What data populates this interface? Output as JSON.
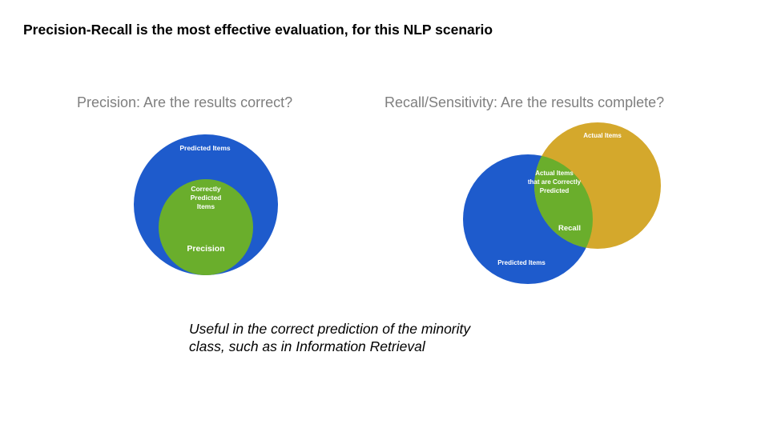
{
  "title": "Precision-Recall is the most effective evaluation, for this NLP scenario",
  "precision_panel": {
    "heading": "Precision: Are the results correct?",
    "outer_label": "Predicted Items",
    "inner_label_lines": [
      "Correctly",
      "Predicted",
      "Items"
    ],
    "metric_label": "Precision"
  },
  "recall_panel": {
    "heading": "Recall/Sensitivity: Are the results complete?",
    "actual_label": "Actual Items",
    "overlap_label_lines": [
      "Actual Items",
      "that are Correctly",
      "Predicted"
    ],
    "metric_label": "Recall",
    "predicted_label": "Predicted Items"
  },
  "note_lines": [
    "Useful in the correct prediction of the minority",
    "class, such as in Information Retrieval"
  ],
  "colors": {
    "blue": "#1e5bcc",
    "green": "#6aae2c",
    "gold": "#d4a82c",
    "heading_gray": "#7f7f7f"
  }
}
